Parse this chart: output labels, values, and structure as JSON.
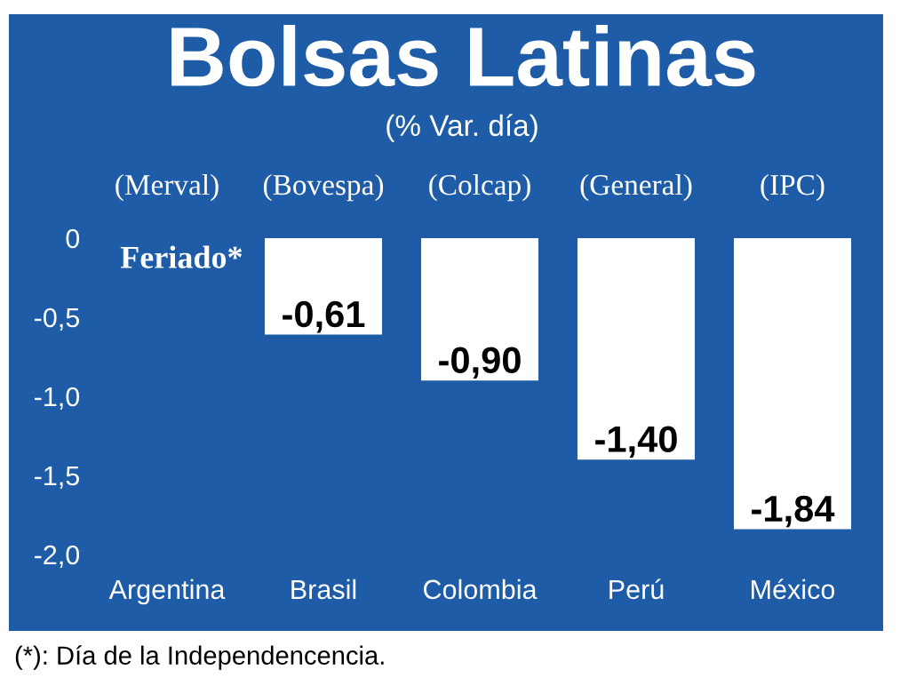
{
  "chart_data": {
    "type": "bar",
    "title": "Bolsas Latinas",
    "subtitle": "(% Var. día)",
    "categories": [
      "Argentina",
      "Brasil",
      "Colombia",
      "Perú",
      "México"
    ],
    "values": [
      null,
      -0.61,
      -0.9,
      -1.4,
      -1.84
    ],
    "value_labels": [
      null,
      "-0,61",
      "-0,90",
      "-1,40",
      "-1,84"
    ],
    "color": "#ffffff",
    "ylim": [
      -2.0,
      0
    ],
    "yticks": [
      0,
      {
        "value": -0.5,
        "label": "-0,5"
      },
      {
        "value": -1.0,
        "label": "-1,0"
      },
      {
        "value": -1.5,
        "label": "-1,5"
      },
      {
        "value": -2.0,
        "label": "-2,0"
      }
    ],
    "grid": false,
    "legend": false,
    "annotations": [
      "(Merval)",
      "(Bovespa)",
      "(Colcap)",
      "(General)",
      "(IPC)",
      "Feriado*",
      "(*): Día de la Independencencia."
    ]
  }
}
